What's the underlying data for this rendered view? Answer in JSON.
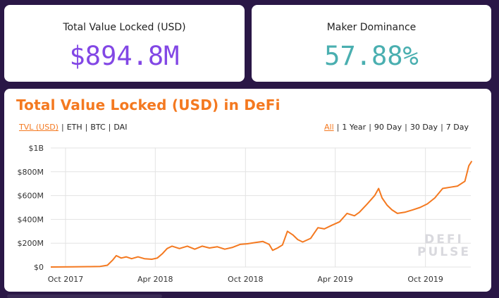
{
  "stats": {
    "tvl": {
      "label": "Total Value Locked (USD)",
      "value": "$894.8M",
      "color": "#8247e5"
    },
    "dominance": {
      "label": "Maker Dominance",
      "value": "57.88%",
      "color": "#4aafb0"
    }
  },
  "chart_header": {
    "title": "Total Value Locked (USD) in DeFi",
    "title_color": "#f47920",
    "asset_tabs": [
      "TVL (USD)",
      "ETH",
      "BTC",
      "DAI"
    ],
    "asset_active": "TVL (USD)",
    "range_tabs": [
      "All",
      "1 Year",
      "90 Day",
      "30 Day",
      "7 Day"
    ],
    "range_active": "All"
  },
  "watermark": {
    "line1": "DEFI",
    "line2": "PULSE"
  },
  "chart_data": {
    "type": "line",
    "title": "Total Value Locked (USD) in DeFi",
    "xlabel": "",
    "ylabel": "",
    "x_start": "2017-09",
    "x_end": "2020-01",
    "ylim": [
      0,
      1000000000
    ],
    "grid": true,
    "line_color": "#f47920",
    "x_ticks": [
      {
        "date": "2017-10",
        "label": "Oct 2017"
      },
      {
        "date": "2018-04",
        "label": "Apr 2018"
      },
      {
        "date": "2018-10",
        "label": "Oct 2018"
      },
      {
        "date": "2019-04",
        "label": "Apr 2019"
      },
      {
        "date": "2019-10",
        "label": "Oct 2019"
      }
    ],
    "y_ticks": [
      {
        "value": 0,
        "label": "$0"
      },
      {
        "value": 200000000,
        "label": "$200M"
      },
      {
        "value": 400000000,
        "label": "$400M"
      },
      {
        "value": 600000000,
        "label": "$600M"
      },
      {
        "value": 800000000,
        "label": "$800M"
      },
      {
        "value": 1000000000,
        "label": "$1B"
      }
    ],
    "series": [
      {
        "points": [
          [
            "2017-09-01",
            0
          ],
          [
            "2017-10-15",
            1000000
          ],
          [
            "2017-11-15",
            3000000
          ],
          [
            "2017-12-10",
            5000000
          ],
          [
            "2017-12-25",
            15000000
          ],
          [
            "2018-01-05",
            60000000
          ],
          [
            "2018-01-12",
            95000000
          ],
          [
            "2018-01-22",
            75000000
          ],
          [
            "2018-02-01",
            85000000
          ],
          [
            "2018-02-12",
            70000000
          ],
          [
            "2018-02-25",
            85000000
          ],
          [
            "2018-03-10",
            70000000
          ],
          [
            "2018-03-25",
            65000000
          ],
          [
            "2018-04-05",
            75000000
          ],
          [
            "2018-04-15",
            110000000
          ],
          [
            "2018-04-25",
            155000000
          ],
          [
            "2018-05-05",
            175000000
          ],
          [
            "2018-05-20",
            155000000
          ],
          [
            "2018-06-05",
            175000000
          ],
          [
            "2018-06-20",
            150000000
          ],
          [
            "2018-07-05",
            175000000
          ],
          [
            "2018-07-20",
            160000000
          ],
          [
            "2018-08-05",
            170000000
          ],
          [
            "2018-08-20",
            150000000
          ],
          [
            "2018-09-05",
            165000000
          ],
          [
            "2018-09-20",
            190000000
          ],
          [
            "2018-10-05",
            195000000
          ],
          [
            "2018-10-20",
            205000000
          ],
          [
            "2018-11-05",
            215000000
          ],
          [
            "2018-11-18",
            190000000
          ],
          [
            "2018-11-25",
            140000000
          ],
          [
            "2018-12-05",
            160000000
          ],
          [
            "2018-12-15",
            185000000
          ],
          [
            "2018-12-25",
            300000000
          ],
          [
            "2019-01-05",
            270000000
          ],
          [
            "2019-01-15",
            230000000
          ],
          [
            "2019-01-25",
            210000000
          ],
          [
            "2019-02-10",
            240000000
          ],
          [
            "2019-02-25",
            330000000
          ],
          [
            "2019-03-10",
            320000000
          ],
          [
            "2019-03-25",
            350000000
          ],
          [
            "2019-04-10",
            380000000
          ],
          [
            "2019-04-25",
            450000000
          ],
          [
            "2019-05-10",
            430000000
          ],
          [
            "2019-05-20",
            460000000
          ],
          [
            "2019-06-05",
            530000000
          ],
          [
            "2019-06-20",
            600000000
          ],
          [
            "2019-06-28",
            660000000
          ],
          [
            "2019-07-05",
            580000000
          ],
          [
            "2019-07-15",
            520000000
          ],
          [
            "2019-07-25",
            480000000
          ],
          [
            "2019-08-05",
            450000000
          ],
          [
            "2019-08-20",
            460000000
          ],
          [
            "2019-09-05",
            480000000
          ],
          [
            "2019-09-20",
            500000000
          ],
          [
            "2019-10-05",
            530000000
          ],
          [
            "2019-10-20",
            580000000
          ],
          [
            "2019-11-05",
            660000000
          ],
          [
            "2019-11-20",
            670000000
          ],
          [
            "2019-12-05",
            680000000
          ],
          [
            "2019-12-20",
            720000000
          ],
          [
            "2019-12-28",
            850000000
          ],
          [
            "2020-01-03",
            890000000
          ]
        ]
      }
    ]
  }
}
